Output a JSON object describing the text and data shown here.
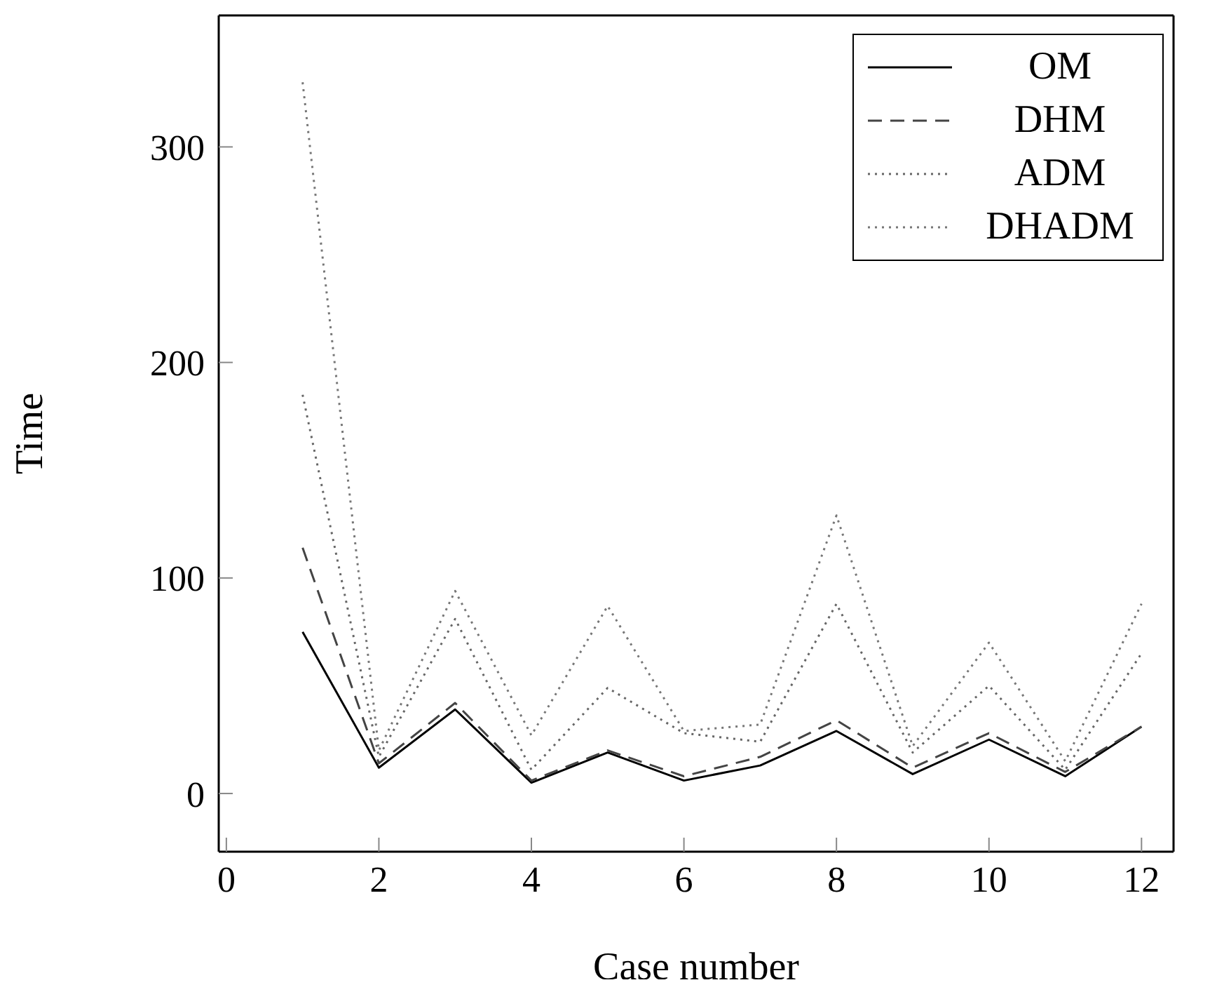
{
  "chart_data": {
    "type": "line",
    "xlabel": "Case number",
    "ylabel": "Time",
    "x": [
      1,
      2,
      3,
      4,
      5,
      6,
      7,
      8,
      9,
      10,
      11,
      12
    ],
    "xlim": [
      -0.1,
      12.42
    ],
    "xticks": [
      0,
      2,
      4,
      6,
      8,
      10,
      12
    ],
    "ylim": [
      -27,
      361
    ],
    "yticks": [
      0,
      100,
      200,
      300
    ],
    "grid": false,
    "legend": "top right",
    "marker": "none",
    "series": [
      {
        "name": "OM",
        "color": "#000000",
        "line_style": "solid",
        "values": [
          75,
          12,
          39,
          5,
          19,
          6,
          13,
          29,
          9,
          25,
          8,
          31
        ]
      },
      {
        "name": "DHM",
        "color": "#444444",
        "line_style": "dashed",
        "values": [
          114,
          14,
          42,
          6,
          20,
          8,
          17,
          34,
          12,
          28,
          10,
          31
        ]
      },
      {
        "name": "ADM",
        "color": "#666666",
        "line_style": "dotted",
        "values": [
          185,
          17,
          81,
          11,
          49,
          28,
          24,
          88,
          19,
          50,
          11,
          65
        ]
      },
      {
        "name": "DHADM",
        "color": "#777777",
        "line_style": "dotted",
        "values": [
          330,
          20,
          94,
          27,
          87,
          29,
          32,
          129,
          22,
          70,
          15,
          88
        ]
      }
    ]
  }
}
